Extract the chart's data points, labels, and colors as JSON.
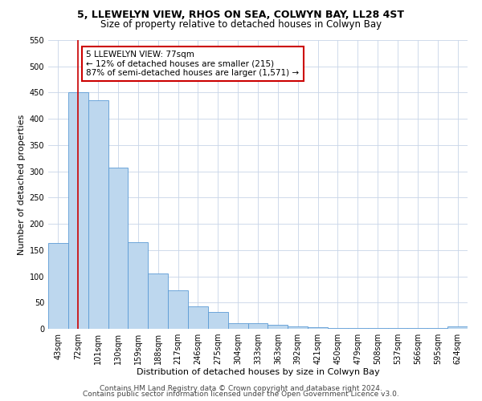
{
  "title1": "5, LLEWELYN VIEW, RHOS ON SEA, COLWYN BAY, LL28 4ST",
  "title2": "Size of property relative to detached houses in Colwyn Bay",
  "xlabel": "Distribution of detached houses by size in Colwyn Bay",
  "ylabel": "Number of detached properties",
  "categories": [
    "43sqm",
    "72sqm",
    "101sqm",
    "130sqm",
    "159sqm",
    "188sqm",
    "217sqm",
    "246sqm",
    "275sqm",
    "304sqm",
    "333sqm",
    "363sqm",
    "392sqm",
    "421sqm",
    "450sqm",
    "479sqm",
    "508sqm",
    "537sqm",
    "566sqm",
    "595sqm",
    "624sqm"
  ],
  "values": [
    163,
    450,
    435,
    307,
    165,
    105,
    73,
    43,
    32,
    10,
    10,
    8,
    4,
    3,
    2,
    2,
    1,
    1,
    1,
    1,
    4
  ],
  "bar_color": "#bdd7ee",
  "bar_edge_color": "#5b9bd5",
  "vline_x": 1,
  "vline_color": "#cc0000",
  "annotation_text": "5 LLEWELYN VIEW: 77sqm\n← 12% of detached houses are smaller (215)\n87% of semi-detached houses are larger (1,571) →",
  "annotation_box_color": "#ffffff",
  "annotation_box_edge": "#cc0000",
  "ylim": [
    0,
    550
  ],
  "yticks": [
    0,
    50,
    100,
    150,
    200,
    250,
    300,
    350,
    400,
    450,
    500,
    550
  ],
  "footer1": "Contains HM Land Registry data © Crown copyright and database right 2024.",
  "footer2": "Contains public sector information licensed under the Open Government Licence v3.0.",
  "bg_color": "#ffffff",
  "grid_color": "#c8d4e8",
  "title1_fontsize": 9,
  "title2_fontsize": 8.5,
  "axis_label_fontsize": 8,
  "tick_fontsize": 7,
  "annotation_fontsize": 7.5,
  "footer_fontsize": 6.5
}
